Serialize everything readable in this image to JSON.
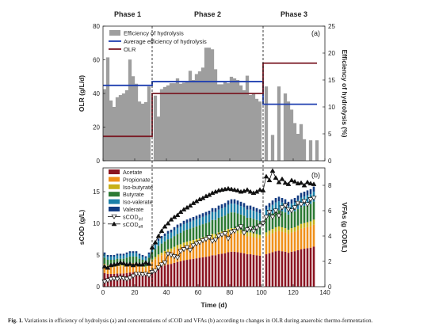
{
  "caption": {
    "label": "Fig. 1.",
    "text": "Variations in efficiency of hydrolysis (a) and concentrations of sCOD and VFAs (b) according to changes in OLR during anaerobic thermo-fermentation."
  },
  "chart_data": [
    {
      "type": "bar",
      "panel_label": "(a)",
      "phases": [
        {
          "label": "Phase 1",
          "start": 0,
          "end": 31
        },
        {
          "label": "Phase 2",
          "start": 31,
          "end": 101
        },
        {
          "label": "Phase 3",
          "start": 101,
          "end": 140
        }
      ],
      "xlim": [
        0,
        140
      ],
      "ylabel": "OLR (g/L/d)",
      "ylim": [
        0,
        80
      ],
      "yticks": [
        0,
        20,
        40,
        60,
        80
      ],
      "y2label": "Efficiency of hydrolysis (%)",
      "y2lim": [
        0,
        25
      ],
      "y2ticks": [
        0,
        5,
        10,
        15,
        20,
        25
      ],
      "legend": [
        "Efficiency of hydrolysis",
        "Average efficiency of hydrolysis",
        "OLR"
      ],
      "colors": {
        "bars": "#9e9e9e",
        "average": "#1f3fb0",
        "olr": "#7a1a24"
      },
      "efficiency": {
        "x": [
          1,
          3,
          5,
          7,
          9,
          11,
          13,
          15,
          17,
          19,
          21,
          23,
          25,
          27,
          29,
          33,
          35,
          37,
          39,
          41,
          43,
          45,
          47,
          49,
          51,
          53,
          55,
          57,
          59,
          61,
          63,
          65,
          67,
          69,
          71,
          73,
          75,
          77,
          79,
          81,
          83,
          85,
          87,
          89,
          91,
          93,
          95,
          97,
          99,
          103,
          107,
          111,
          115,
          117,
          119,
          121,
          123,
          125,
          127,
          131,
          135
        ],
        "y": [
          13.3,
          19.2,
          11.2,
          10,
          11.8,
          12.2,
          12.5,
          13.1,
          18.8,
          15.7,
          14.3,
          11.0,
          10.6,
          10.9,
          13.8,
          12.1,
          8.2,
          13.3,
          13.7,
          14.0,
          14.4,
          14.4,
          15.3,
          14.3,
          14.5,
          14.6,
          16.7,
          15.0,
          16.1,
          16.6,
          17.3,
          21.0,
          21.0,
          20.7,
          17.0,
          14.2,
          14.2,
          14.6,
          14.4,
          15.6,
          15.3,
          15.0,
          14.0,
          13.1,
          15.8,
          12.2,
          12.5,
          11.5,
          11.0,
          13.8,
          4.8,
          13.8,
          12.5,
          11.0,
          9.5,
          7.0,
          5.0,
          6.8,
          4.0,
          3.8,
          3.8
        ]
      },
      "average_efficiency": {
        "x": [
          0,
          31,
          101,
          135
        ],
        "y": [
          14.0,
          14.7,
          10.5,
          10.5
        ]
      },
      "olr": {
        "x": [
          0,
          31,
          101,
          135
        ],
        "y": [
          14.5,
          40,
          58,
          58
        ]
      }
    },
    {
      "type": "bar",
      "panel_label": "(b)",
      "xlabel": "Time (d)",
      "xlim": [
        0,
        140
      ],
      "xticks": [
        0,
        20,
        40,
        60,
        80,
        100,
        120,
        140
      ],
      "ylabel": "sCOD (g/L)",
      "ylim": [
        0,
        18.75
      ],
      "yticks": [
        0,
        5,
        10,
        15
      ],
      "y2label": "VFAs (g COD/L)",
      "y2lim": [
        0,
        9.375
      ],
      "y2ticks": [
        0,
        2,
        4,
        6,
        8
      ],
      "phase_dividers": [
        31,
        101
      ],
      "legend": [
        "Acetate",
        "Propionate",
        "Iso-butyrate",
        "Butyrate",
        "Iso-valerate",
        "Valerate",
        "sCOD",
        "sCOD"
      ],
      "legend_subscripts": [
        "",
        "",
        "",
        "",
        "",
        "",
        "inf",
        "eff"
      ],
      "colors": {
        "Acetate": "#8b1421",
        "Propionate": "#f0901a",
        "Iso-butyrate": "#c8b018",
        "Butyrate": "#2c7a34",
        "Iso-valerate": "#1c80a8",
        "Valerate": "#123c82",
        "markers": "#111111"
      },
      "vfa_series": [
        "Acetate",
        "Propionate",
        "Iso-butyrate",
        "Butyrate",
        "Iso-valerate",
        "Valerate"
      ],
      "vfa_days": [
        1,
        3,
        5,
        7,
        9,
        11,
        13,
        15,
        17,
        19,
        21,
        23,
        25,
        27,
        29,
        31,
        33,
        35,
        37,
        39,
        41,
        43,
        45,
        47,
        49,
        51,
        53,
        55,
        57,
        59,
        61,
        63,
        65,
        67,
        69,
        71,
        73,
        75,
        77,
        79,
        81,
        83,
        85,
        87,
        89,
        91,
        93,
        95,
        97,
        99,
        103,
        105,
        107,
        109,
        111,
        113,
        115,
        117,
        119,
        121,
        123,
        125,
        127,
        129,
        131,
        133
      ],
      "vfa_totals": [
        2.7,
        2.5,
        2.5,
        2.5,
        2.6,
        2.6,
        2.6,
        2.7,
        2.8,
        2.8,
        2.8,
        2.6,
        2.5,
        2.4,
        2.7,
        3.2,
        3.5,
        3.8,
        4.0,
        4.2,
        4.4,
        4.5,
        4.7,
        4.9,
        5.0,
        5.2,
        5.3,
        5.4,
        5.5,
        5.6,
        5.7,
        5.8,
        5.9,
        6.0,
        6.2,
        6.2,
        6.4,
        6.5,
        6.6,
        6.8,
        6.9,
        6.9,
        6.8,
        6.7,
        6.6,
        6.4,
        6.4,
        6.3,
        6.2,
        6.1,
        6.4,
        6.6,
        6.8,
        7.0,
        7.1,
        7.0,
        6.9,
        6.7,
        6.9,
        7.0,
        7.2,
        7.4,
        7.5,
        7.6,
        7.7,
        7.9
      ],
      "vfa_fractions": [
        0.4,
        0.22,
        0.05,
        0.18,
        0.1,
        0.05
      ],
      "scod_inf": {
        "x": [
          1,
          3,
          5,
          7,
          9,
          11,
          13,
          15,
          17,
          19,
          21,
          23,
          25,
          27,
          29,
          31,
          33,
          35,
          37,
          39,
          41,
          43,
          45,
          47,
          49,
          51,
          53,
          55,
          57,
          59,
          61,
          63,
          65,
          67,
          69,
          71,
          73,
          75,
          77,
          79,
          81,
          83,
          85,
          87,
          89,
          91,
          93,
          95,
          97,
          99,
          101,
          103,
          105,
          107,
          109,
          111,
          113,
          115,
          117,
          119,
          121,
          123,
          125,
          127,
          129,
          131,
          133
        ],
        "y": [
          0.8,
          1.0,
          1.2,
          1.3,
          1.2,
          1.4,
          1.3,
          1.2,
          1.4,
          1.7,
          2.0,
          2.0,
          1.9,
          2.0,
          1.8,
          2.3,
          2.5,
          3.0,
          3.5,
          3.8,
          5.2,
          5.0,
          4.8,
          4.6,
          5.6,
          5.9,
          6.2,
          5.8,
          6.5,
          6.8,
          7.0,
          7.3,
          7.5,
          7.8,
          7.2,
          7.4,
          8.0,
          8.2,
          8.4,
          7.6,
          8.6,
          8.8,
          9.2,
          9.5,
          8.5,
          9.0,
          9.2,
          8.8,
          9.3,
          9.6,
          10.0,
          11.0,
          11.8,
          11.0,
          12.0,
          11.2,
          12.5,
          12.8,
          12.2,
          12.0,
          12.5,
          13.2,
          13.0,
          13.5,
          13.0,
          13.8,
          14.0
        ]
      },
      "scod_eff": {
        "x": [
          1,
          3,
          5,
          7,
          9,
          11,
          13,
          15,
          17,
          19,
          21,
          23,
          25,
          27,
          29,
          31,
          33,
          35,
          37,
          39,
          41,
          43,
          45,
          47,
          49,
          51,
          53,
          55,
          57,
          59,
          61,
          63,
          65,
          67,
          69,
          71,
          73,
          75,
          77,
          79,
          81,
          83,
          85,
          87,
          89,
          91,
          93,
          95,
          97,
          99,
          101,
          103,
          105,
          107,
          109,
          111,
          113,
          115,
          117,
          119,
          121,
          123,
          125,
          127,
          129,
          131,
          133
        ],
        "y": [
          3.2,
          3.0,
          3.4,
          3.5,
          3.6,
          3.8,
          3.7,
          3.5,
          3.6,
          3.4,
          3.6,
          3.5,
          3.5,
          3.8,
          3.6,
          6.2,
          7.0,
          8.0,
          8.8,
          9.5,
          10.0,
          10.6,
          11.0,
          11.3,
          11.8,
          12.2,
          12.5,
          12.8,
          13.2,
          13.5,
          13.8,
          14.0,
          14.3,
          14.5,
          14.8,
          15.0,
          15.2,
          15.3,
          15.4,
          15.5,
          15.4,
          15.3,
          15.2,
          15.0,
          15.1,
          15.3,
          15.0,
          14.8,
          15.0,
          15.3,
          15.2,
          17.4,
          16.8,
          18.3,
          17.2,
          16.5,
          17.0,
          16.4,
          16.2,
          16.8,
          16.6,
          16.3,
          16.4,
          16.0,
          16.5,
          16.3,
          16.2
        ]
      }
    }
  ]
}
